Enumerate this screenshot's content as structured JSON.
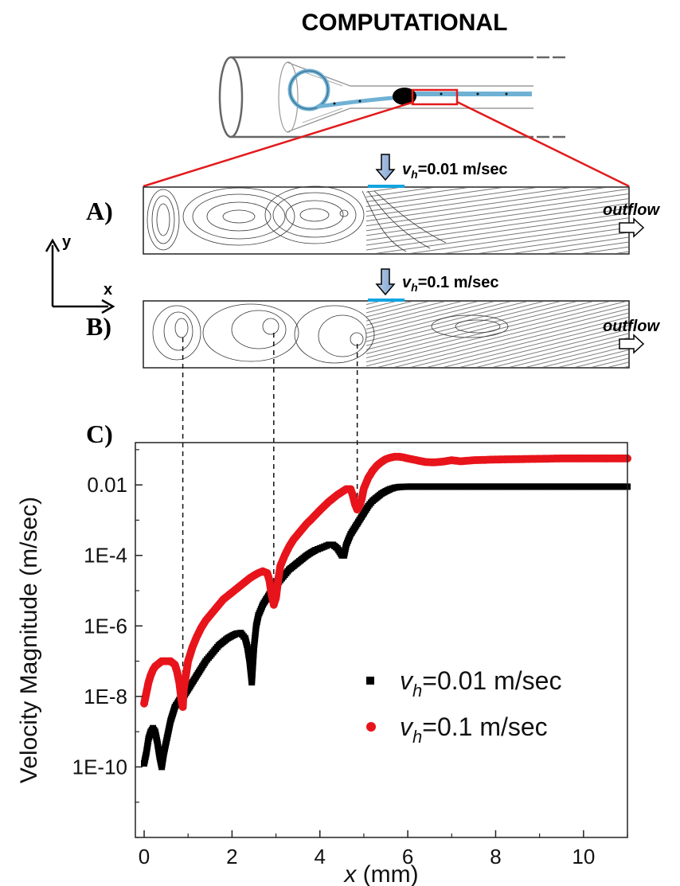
{
  "header": {
    "title": "COMPUTATIONAL"
  },
  "panels": {
    "a": {
      "label": "A)",
      "velocity_label_main": "=0.01 m/sec",
      "v": "v",
      "h": "h",
      "outflow": "outflow"
    },
    "b": {
      "label": "B)",
      "velocity_label_main": "=0.1 m/sec",
      "v": "v",
      "h": "h",
      "outflow": "outflow"
    },
    "c": {
      "label": "C)"
    }
  },
  "axes_glyph": {
    "x": "x",
    "y": "y"
  },
  "colors": {
    "black_series": "#000000",
    "red_series": "#e8141b",
    "wire_blue": "#6fb1d4",
    "highlight_red": "#e31a1c",
    "inlet_blue": "#12a4e0"
  },
  "chart_data": {
    "type": "scatter",
    "xlabel_var": "x",
    "xlabel_unit": " (mm)",
    "ylabel": "Velocity Magnitude (m/sec)",
    "xlim": [
      -0.2,
      11
    ],
    "ylim_log10": [
      -12,
      -0.8
    ],
    "yscale": "log",
    "x_ticks": [
      0,
      2,
      4,
      6,
      8,
      10
    ],
    "x_tick_labels": [
      "0",
      "2",
      "4",
      "6",
      "8",
      "10"
    ],
    "y_ticks_log10": [
      -10,
      -8,
      -6,
      -4,
      -2
    ],
    "y_tick_labels": [
      "1E-10",
      "1E-8",
      "1E-6",
      "1E-4",
      "0.01"
    ],
    "legend_position": "lower-right",
    "series": [
      {
        "name_v": "v",
        "name_sub": "h",
        "name_rest": "=0.01 m/sec",
        "color": "#000000",
        "marker": "square",
        "points": [
          [
            0.0,
            -9.9
          ],
          [
            0.05,
            -9.6
          ],
          [
            0.1,
            -9.2
          ],
          [
            0.15,
            -9.0
          ],
          [
            0.2,
            -8.9
          ],
          [
            0.25,
            -9.0
          ],
          [
            0.3,
            -9.3
          ],
          [
            0.35,
            -9.7
          ],
          [
            0.4,
            -10.0
          ],
          [
            0.45,
            -9.6
          ],
          [
            0.5,
            -9.3
          ],
          [
            0.55,
            -9.0
          ],
          [
            0.6,
            -8.7
          ],
          [
            0.65,
            -8.5
          ],
          [
            0.7,
            -8.3
          ],
          [
            0.75,
            -8.2
          ],
          [
            0.8,
            -8.1
          ],
          [
            0.9,
            -8.0
          ],
          [
            1.0,
            -7.8
          ],
          [
            1.1,
            -7.6
          ],
          [
            1.2,
            -7.4
          ],
          [
            1.3,
            -7.2
          ],
          [
            1.4,
            -7.0
          ],
          [
            1.5,
            -6.85
          ],
          [
            1.6,
            -6.7
          ],
          [
            1.7,
            -6.55
          ],
          [
            1.8,
            -6.45
          ],
          [
            1.9,
            -6.35
          ],
          [
            2.0,
            -6.28
          ],
          [
            2.1,
            -6.22
          ],
          [
            2.2,
            -6.2
          ],
          [
            2.3,
            -6.35
          ],
          [
            2.35,
            -6.6
          ],
          [
            2.4,
            -7.0
          ],
          [
            2.43,
            -7.35
          ],
          [
            2.45,
            -7.6
          ],
          [
            2.5,
            -6.6
          ],
          [
            2.55,
            -6.0
          ],
          [
            2.6,
            -5.7
          ],
          [
            2.7,
            -5.4
          ],
          [
            2.8,
            -5.2
          ],
          [
            2.9,
            -5.0
          ],
          [
            3.0,
            -4.85
          ],
          [
            3.1,
            -4.7
          ],
          [
            3.2,
            -4.55
          ],
          [
            3.3,
            -4.4
          ],
          [
            3.4,
            -4.3
          ],
          [
            3.5,
            -4.2
          ],
          [
            3.6,
            -4.1
          ],
          [
            3.7,
            -4.0
          ],
          [
            3.8,
            -3.92
          ],
          [
            3.9,
            -3.85
          ],
          [
            4.0,
            -3.8
          ],
          [
            4.1,
            -3.75
          ],
          [
            4.2,
            -3.7
          ],
          [
            4.3,
            -3.7
          ],
          [
            4.4,
            -3.8
          ],
          [
            4.5,
            -4.0
          ],
          [
            4.55,
            -4.0
          ],
          [
            4.6,
            -3.7
          ],
          [
            4.7,
            -3.4
          ],
          [
            4.8,
            -3.2
          ],
          [
            4.9,
            -3.0
          ],
          [
            5.0,
            -2.8
          ],
          [
            5.1,
            -2.6
          ],
          [
            5.2,
            -2.45
          ],
          [
            5.3,
            -2.35
          ],
          [
            5.4,
            -2.25
          ],
          [
            5.5,
            -2.18
          ],
          [
            5.6,
            -2.12
          ],
          [
            5.7,
            -2.08
          ],
          [
            5.8,
            -2.06
          ],
          [
            6.0,
            -2.05
          ],
          [
            7.0,
            -2.05
          ],
          [
            8.0,
            -2.05
          ],
          [
            9.0,
            -2.05
          ],
          [
            10.0,
            -2.05
          ],
          [
            11.0,
            -2.05
          ]
        ]
      },
      {
        "name_v": "v",
        "name_sub": "h",
        "name_rest": "=0.1 m/sec",
        "color": "#e8141b",
        "marker": "circle",
        "points": [
          [
            0.0,
            -8.2
          ],
          [
            0.05,
            -7.9
          ],
          [
            0.1,
            -7.6
          ],
          [
            0.15,
            -7.4
          ],
          [
            0.2,
            -7.25
          ],
          [
            0.25,
            -7.15
          ],
          [
            0.3,
            -7.1
          ],
          [
            0.35,
            -7.05
          ],
          [
            0.4,
            -7.0
          ],
          [
            0.5,
            -7.0
          ],
          [
            0.6,
            -7.0
          ],
          [
            0.7,
            -7.1
          ],
          [
            0.75,
            -7.3
          ],
          [
            0.8,
            -7.6
          ],
          [
            0.85,
            -8.1
          ],
          [
            0.88,
            -8.3
          ],
          [
            0.9,
            -7.8
          ],
          [
            0.95,
            -7.4
          ],
          [
            1.0,
            -7.0
          ],
          [
            1.1,
            -6.6
          ],
          [
            1.2,
            -6.3
          ],
          [
            1.3,
            -6.05
          ],
          [
            1.4,
            -5.85
          ],
          [
            1.5,
            -5.7
          ],
          [
            1.6,
            -5.55
          ],
          [
            1.7,
            -5.4
          ],
          [
            1.8,
            -5.25
          ],
          [
            1.9,
            -5.15
          ],
          [
            2.0,
            -5.05
          ],
          [
            2.1,
            -4.95
          ],
          [
            2.2,
            -4.85
          ],
          [
            2.3,
            -4.75
          ],
          [
            2.4,
            -4.65
          ],
          [
            2.5,
            -4.57
          ],
          [
            2.6,
            -4.5
          ],
          [
            2.7,
            -4.45
          ],
          [
            2.8,
            -4.5
          ],
          [
            2.85,
            -4.7
          ],
          [
            2.9,
            -5.1
          ],
          [
            2.95,
            -5.4
          ],
          [
            3.0,
            -5.2
          ],
          [
            3.05,
            -4.7
          ],
          [
            3.1,
            -4.3
          ],
          [
            3.2,
            -4.0
          ],
          [
            3.3,
            -3.75
          ],
          [
            3.4,
            -3.55
          ],
          [
            3.5,
            -3.4
          ],
          [
            3.6,
            -3.25
          ],
          [
            3.7,
            -3.1
          ],
          [
            3.8,
            -2.98
          ],
          [
            3.9,
            -2.85
          ],
          [
            4.0,
            -2.72
          ],
          [
            4.1,
            -2.6
          ],
          [
            4.2,
            -2.48
          ],
          [
            4.3,
            -2.38
          ],
          [
            4.4,
            -2.28
          ],
          [
            4.5,
            -2.2
          ],
          [
            4.6,
            -2.12
          ],
          [
            4.7,
            -2.12
          ],
          [
            4.75,
            -2.3
          ],
          [
            4.8,
            -2.55
          ],
          [
            4.85,
            -2.7
          ],
          [
            4.9,
            -2.6
          ],
          [
            4.95,
            -2.4
          ],
          [
            5.0,
            -2.1
          ],
          [
            5.1,
            -1.8
          ],
          [
            5.2,
            -1.6
          ],
          [
            5.3,
            -1.45
          ],
          [
            5.4,
            -1.35
          ],
          [
            5.5,
            -1.27
          ],
          [
            5.6,
            -1.23
          ],
          [
            5.7,
            -1.2
          ],
          [
            5.8,
            -1.2
          ],
          [
            5.9,
            -1.22
          ],
          [
            6.0,
            -1.25
          ],
          [
            6.2,
            -1.3
          ],
          [
            6.4,
            -1.35
          ],
          [
            6.6,
            -1.36
          ],
          [
            6.8,
            -1.34
          ],
          [
            7.0,
            -1.3
          ],
          [
            7.2,
            -1.33
          ],
          [
            7.5,
            -1.3
          ],
          [
            8.0,
            -1.28
          ],
          [
            8.5,
            -1.27
          ],
          [
            9.0,
            -1.26
          ],
          [
            9.5,
            -1.25
          ],
          [
            10.0,
            -1.25
          ],
          [
            10.5,
            -1.25
          ],
          [
            11.0,
            -1.25
          ]
        ]
      }
    ],
    "annotations": {
      "dashed_guides_x": [
        0.88,
        2.95,
        4.85
      ]
    }
  }
}
